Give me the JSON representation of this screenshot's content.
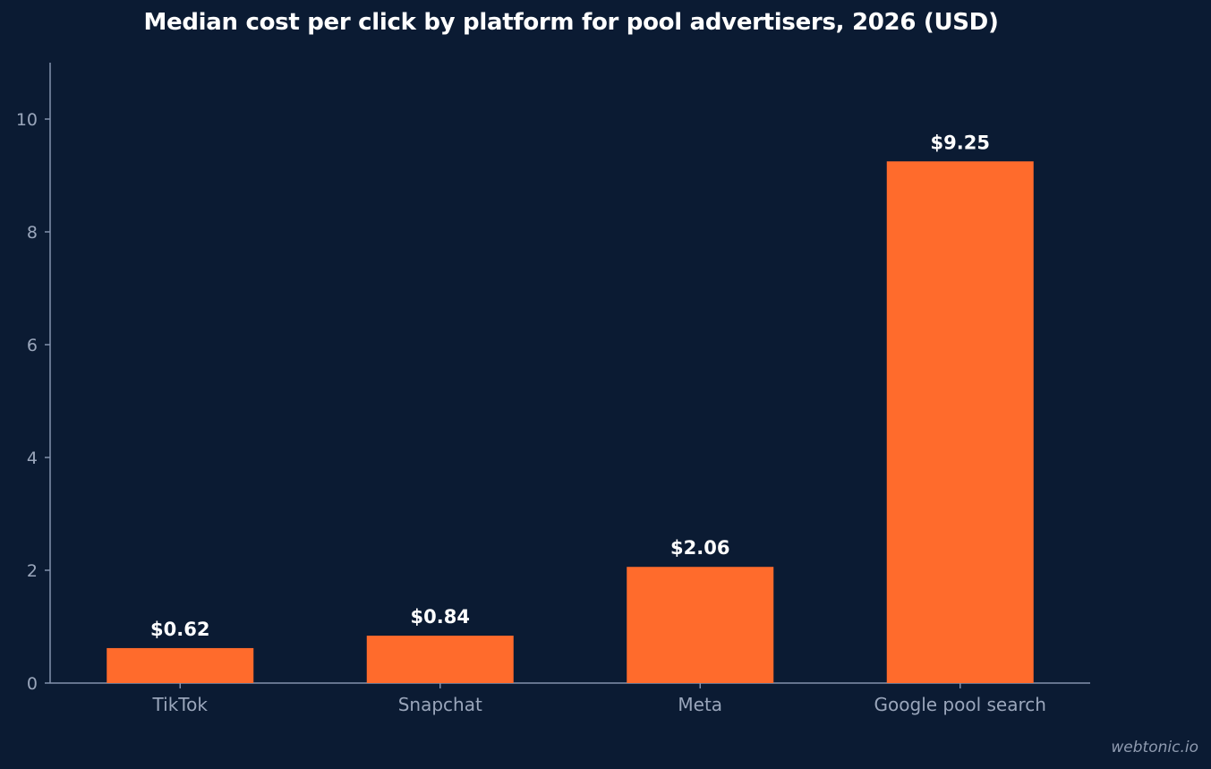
{
  "chart_data": {
    "type": "bar",
    "title": "Median cost per click by platform for pool advertisers, 2026 (USD)",
    "xlabel": "",
    "ylabel": "",
    "categories": [
      "TikTok",
      "Snapchat",
      "Meta",
      "Google pool search"
    ],
    "values": [
      0.62,
      0.84,
      2.06,
      9.25
    ],
    "data_labels": [
      "$0.62",
      "$0.84",
      "$2.06",
      "$9.25"
    ],
    "ylim": [
      0,
      11
    ],
    "yticks": [
      0,
      2,
      4,
      6,
      8,
      10
    ],
    "grid": false,
    "legend": "none",
    "bar_color": "#ff6b2c",
    "background_color": "#0b1b33",
    "axis_color": "#8392ad",
    "tick_label_color": "#9aa6bb",
    "data_label_color": "#ffffff"
  },
  "watermark": "webtonic.io"
}
